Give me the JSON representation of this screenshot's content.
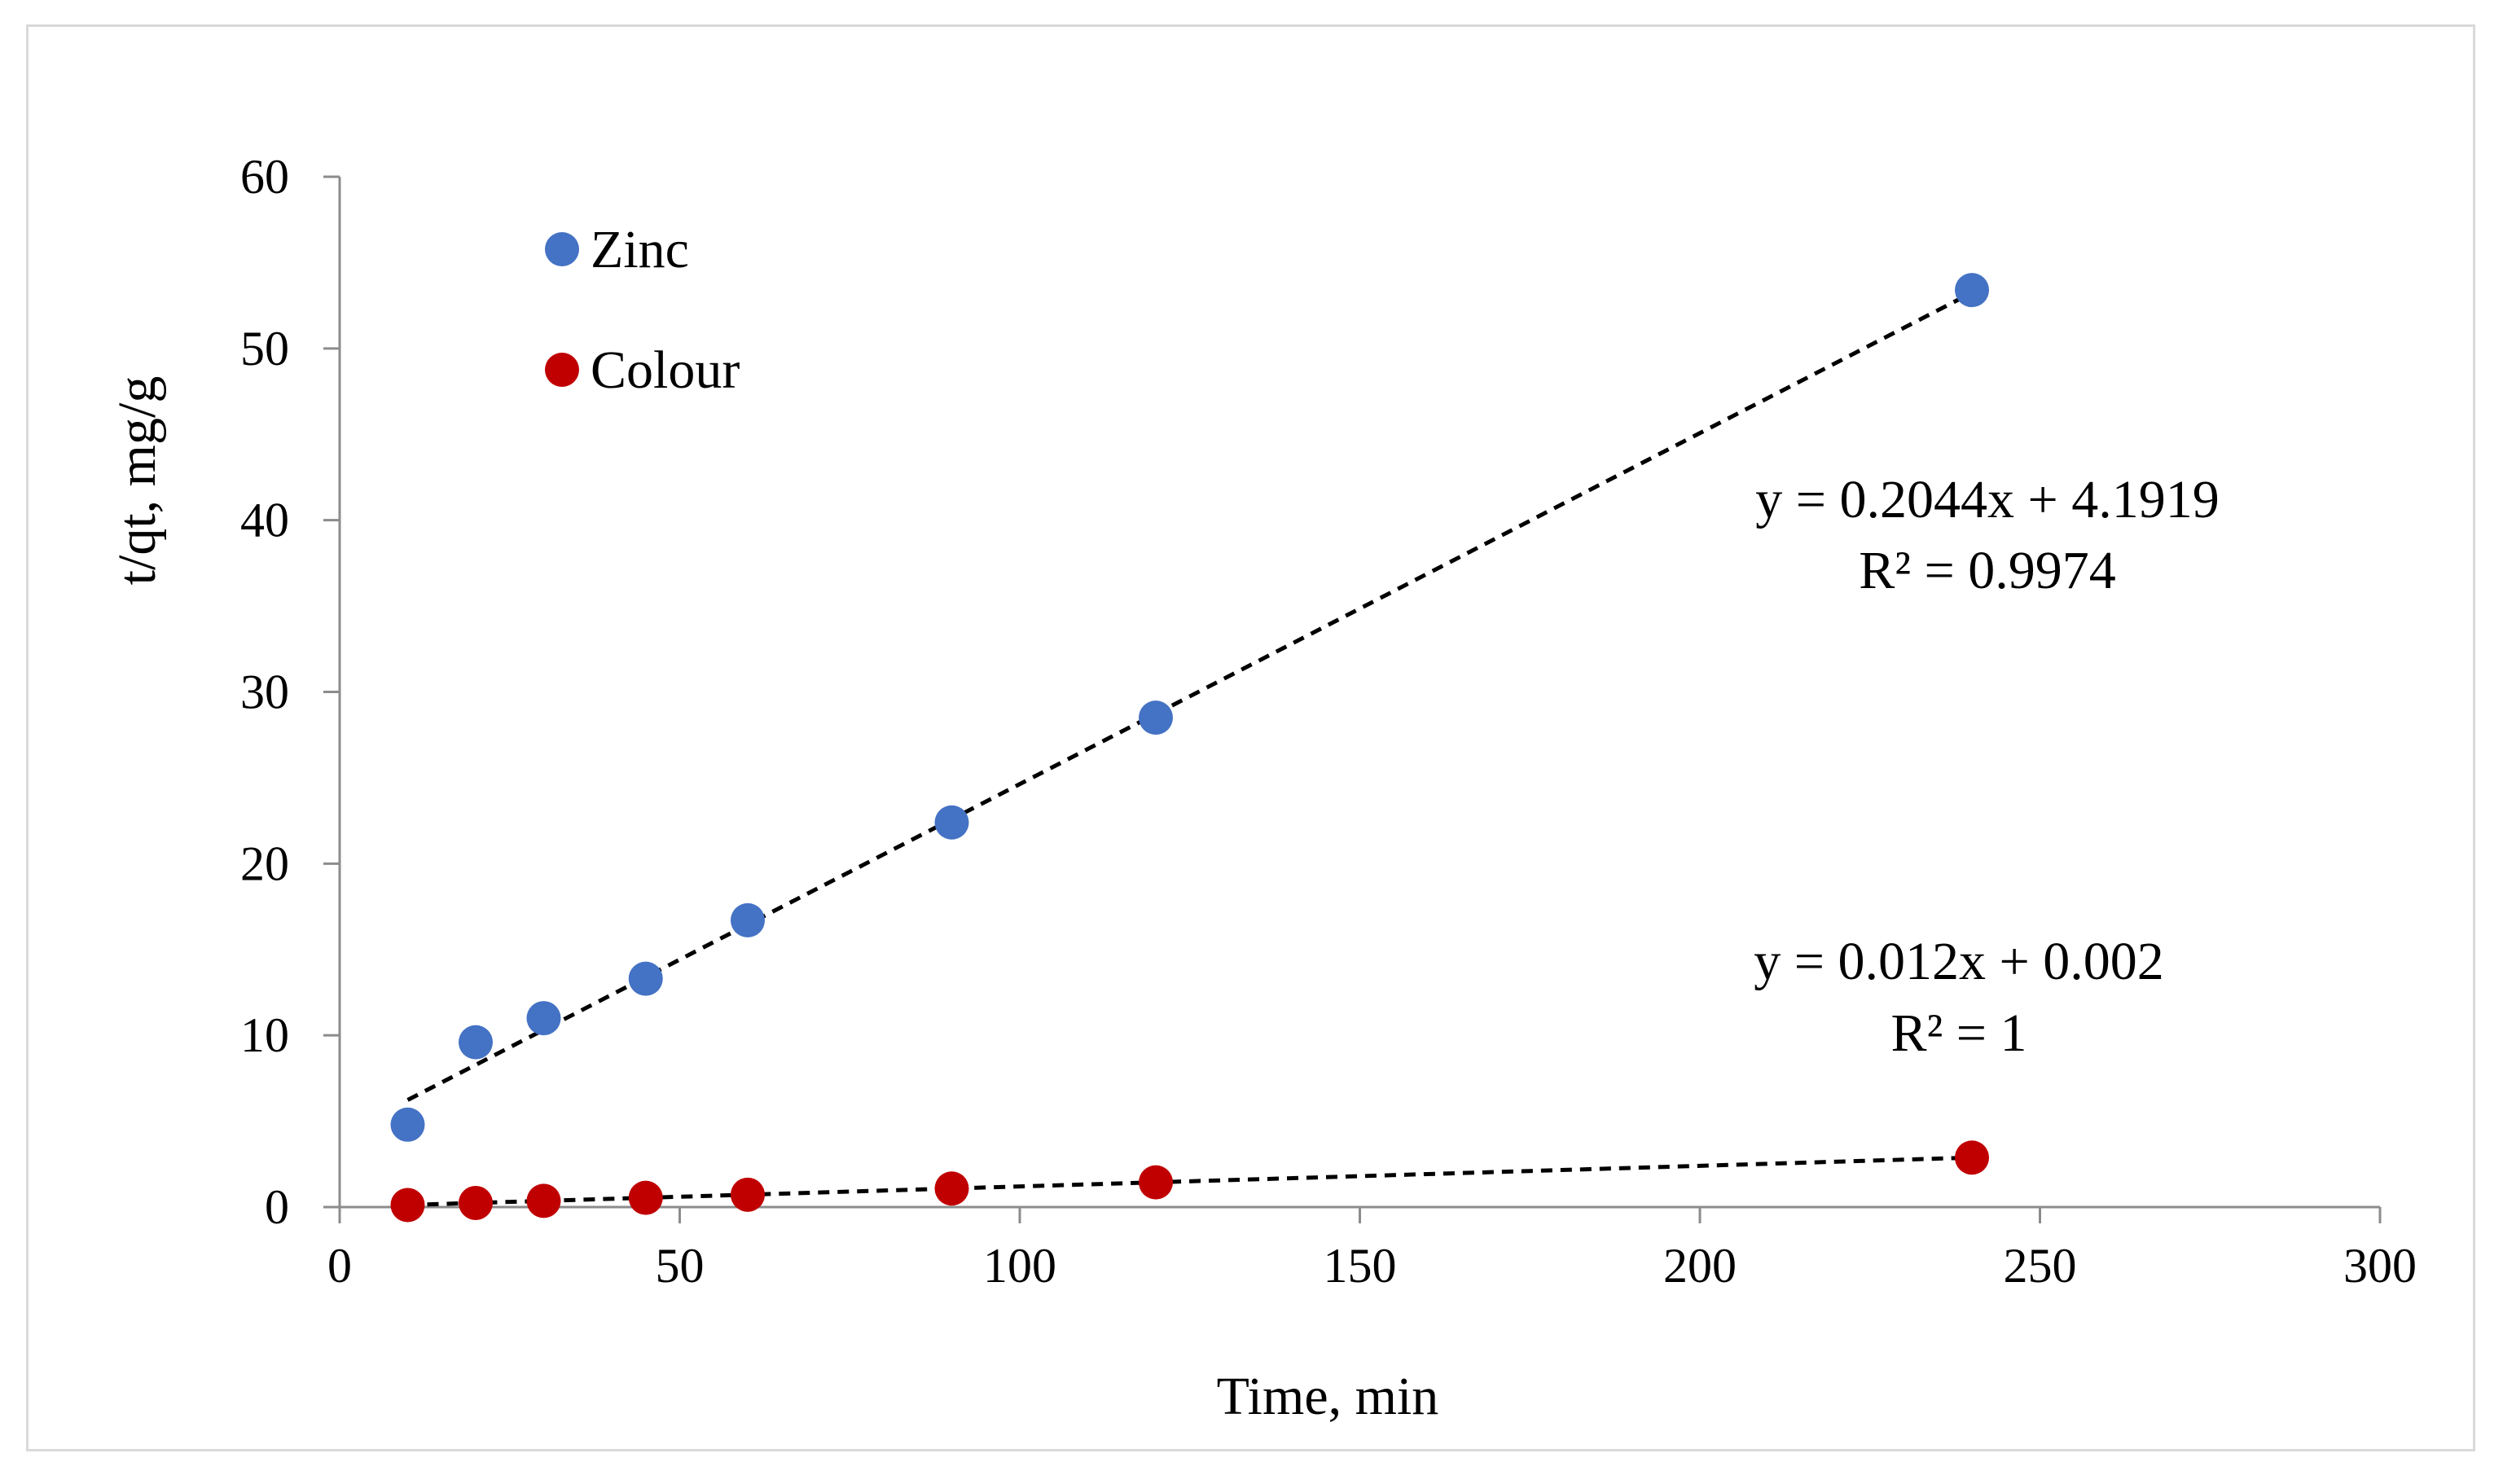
{
  "chart_data": {
    "type": "scatter",
    "title": "",
    "xlabel": "Time, min",
    "ylabel": "t/qt, mg/g",
    "xlim": [
      0,
      300
    ],
    "ylim": [
      0,
      60
    ],
    "x_ticks": [
      0,
      50,
      100,
      150,
      200,
      250,
      300
    ],
    "y_ticks": [
      0,
      10,
      20,
      30,
      40,
      50,
      60
    ],
    "grid": false,
    "legend_position": "top-left",
    "series": [
      {
        "name": "Zinc",
        "color": "#4472C4",
        "x": [
          10,
          20,
          30,
          45,
          60,
          90,
          120,
          240
        ],
        "y": [
          4.8,
          9.6,
          11.0,
          13.3,
          16.7,
          22.4,
          28.5,
          53.4
        ],
        "trendline": {
          "slope": 0.2044,
          "intercept": 4.1919,
          "x_range": [
            10,
            240
          ],
          "equation": "y = 0.2044x + 4.1919",
          "r2_label": "R² = 0.9974"
        }
      },
      {
        "name": "Colour",
        "color": "#C00000",
        "x": [
          10,
          20,
          30,
          45,
          60,
          90,
          120,
          240
        ],
        "y": [
          0.12,
          0.24,
          0.36,
          0.54,
          0.72,
          1.08,
          1.44,
          2.88
        ],
        "trendline": {
          "slope": 0.012,
          "intercept": 0.002,
          "x_range": [
            10,
            240
          ],
          "equation": "y = 0.012x + 0.002",
          "r2_label": "R² = 1"
        }
      }
    ]
  }
}
